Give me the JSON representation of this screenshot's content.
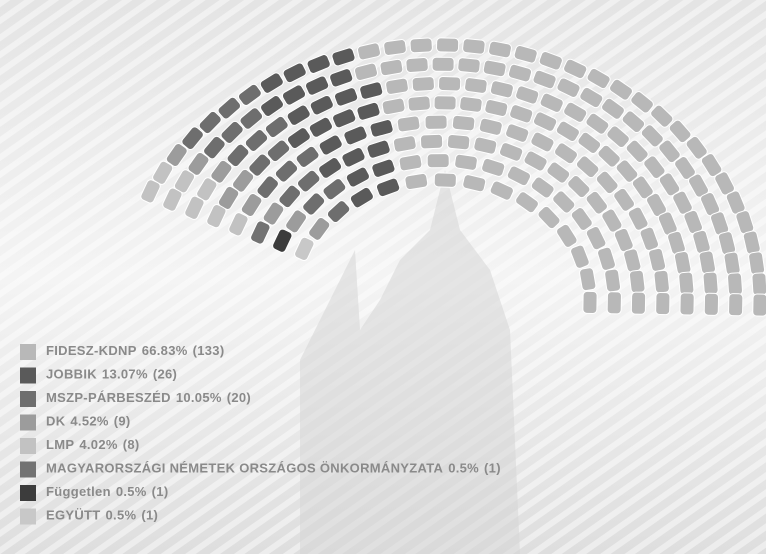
{
  "chart_data": {
    "type": "parliament",
    "series": [
      {
        "name": "FIDESZ-KDNP",
        "share": 66.83,
        "share_label": "66.83%",
        "values": [
          133
        ],
        "value_labels": [
          "(133)"
        ],
        "color": "#b8b8b8"
      },
      {
        "name": "JOBBIK",
        "share": 13.07,
        "share_label": "13.07%",
        "values": [
          26
        ],
        "value_labels": [
          "(26)"
        ],
        "color": "#5a5a5a"
      },
      {
        "name": "MSZP-PÁRBESZÉD",
        "share": 10.05,
        "share_label": "10.05%",
        "values": [
          20
        ],
        "value_labels": [
          "(20)"
        ],
        "color": "#6e6e6e"
      },
      {
        "name": "DK",
        "share": 4.52,
        "share_label": "4.52%",
        "values": [
          9
        ],
        "value_labels": [
          "(9)"
        ],
        "color": "#9c9c9c"
      },
      {
        "name": "LMP",
        "share": 4.02,
        "share_label": "4.02%",
        "values": [
          8
        ],
        "value_labels": [
          "(8)"
        ],
        "color": "#c2c2c2"
      },
      {
        "name": "MAGYARORSZÁGI NÉMETEK ORSZÁGOS ÖNKORMÁNYZATA",
        "share": 0.5,
        "share_label": "0.5%",
        "values": [
          1
        ],
        "value_labels": [
          "(1)"
        ],
        "color": "#727272"
      },
      {
        "name": "Független",
        "share": 0.5,
        "share_label": "0.5%",
        "values": [
          1
        ],
        "value_labels": [
          "(1)"
        ],
        "color": "#3c3c3c"
      },
      {
        "name": "EGYÜTT",
        "share": 0.5,
        "share_label": "0.5%",
        "values": [
          1
        ],
        "value_labels": [
          "(1)"
        ],
        "color": "#c8c8c8"
      }
    ]
  }
}
